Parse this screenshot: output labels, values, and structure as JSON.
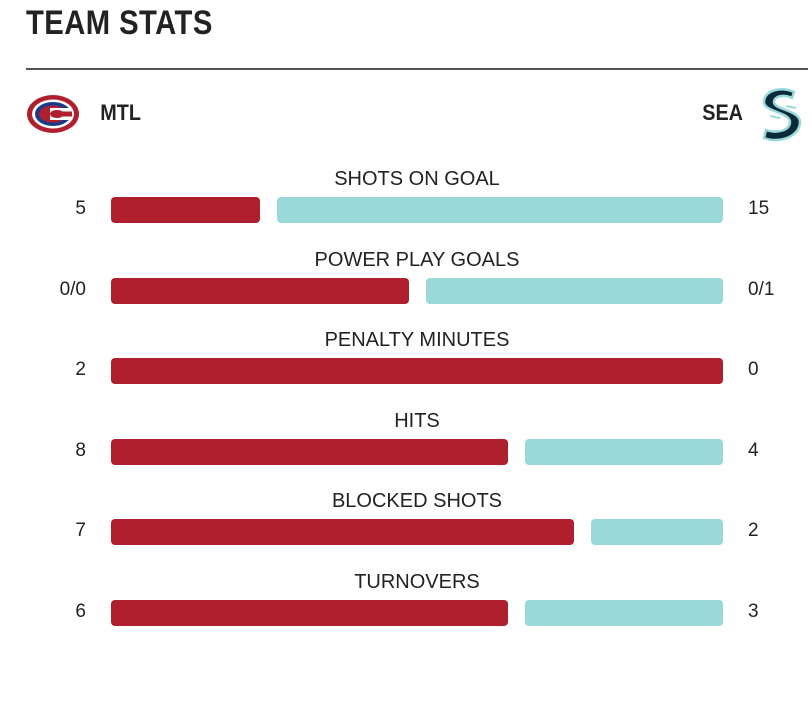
{
  "title": "TEAM STATS",
  "teams": {
    "home": {
      "abbr": "MTL",
      "color": "#b01f2e",
      "logo": "canadiens-logo"
    },
    "away": {
      "abbr": "SEA",
      "color": "#99d9d9",
      "logo": "kraken-logo"
    }
  },
  "stats": [
    {
      "label": "SHOTS ON GOAL",
      "home_display": "5",
      "away_display": "15",
      "home_value": 5,
      "away_value": 15
    },
    {
      "label": "POWER PLAY GOALS",
      "home_display": "0/0",
      "away_display": "0/1",
      "home_value": 1,
      "away_value": 1
    },
    {
      "label": "PENALTY MINUTES",
      "home_display": "2",
      "away_display": "0",
      "home_value": 2,
      "away_value": 0
    },
    {
      "label": "HITS",
      "home_display": "8",
      "away_display": "4",
      "home_value": 8,
      "away_value": 4
    },
    {
      "label": "BLOCKED SHOTS",
      "home_display": "7",
      "away_display": "2",
      "home_value": 7,
      "away_value": 2
    },
    {
      "label": "TURNOVERS",
      "home_display": "6",
      "away_display": "3",
      "home_value": 6,
      "away_value": 3
    }
  ]
}
